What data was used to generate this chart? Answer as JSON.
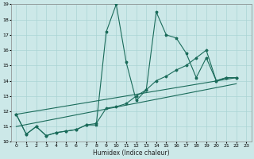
{
  "xlabel": "Humidex (Indice chaleur)",
  "bg_color": "#cce8e8",
  "line_color": "#1a6b5a",
  "grid_color": "#aad4d4",
  "xlim": [
    -0.5,
    23.5
  ],
  "ylim": [
    10,
    19
  ],
  "xticks": [
    0,
    1,
    2,
    3,
    4,
    5,
    6,
    7,
    8,
    9,
    10,
    11,
    12,
    13,
    14,
    15,
    16,
    17,
    18,
    19,
    20,
    21,
    22,
    23
  ],
  "yticks": [
    10,
    11,
    12,
    13,
    14,
    15,
    16,
    17,
    18,
    19
  ],
  "line1_x": [
    0,
    1,
    2,
    3,
    4,
    5,
    6,
    7,
    8,
    9,
    10,
    11,
    12,
    13,
    14,
    15,
    16,
    17,
    18,
    19,
    20,
    21,
    22
  ],
  "line1_y": [
    11.8,
    10.5,
    11.0,
    10.4,
    10.6,
    10.7,
    10.8,
    11.1,
    11.1,
    17.2,
    19.0,
    15.2,
    12.7,
    13.4,
    18.5,
    17.0,
    16.8,
    15.8,
    14.2,
    15.5,
    14.0,
    14.2,
    14.2
  ],
  "line2_x": [
    0,
    1,
    2,
    3,
    4,
    5,
    6,
    7,
    8,
    9,
    10,
    11,
    12,
    13,
    14,
    15,
    16,
    17,
    18,
    19,
    20,
    21,
    22
  ],
  "line2_y": [
    11.8,
    10.5,
    11.0,
    10.4,
    10.6,
    10.7,
    10.8,
    11.1,
    11.2,
    12.2,
    12.3,
    12.5,
    13.0,
    13.4,
    14.0,
    14.3,
    14.7,
    15.0,
    15.5,
    16.0,
    14.0,
    14.2,
    14.2
  ],
  "line3_x": [
    0,
    22
  ],
  "line3_y": [
    11.8,
    14.2
  ],
  "line4_x": [
    0,
    22
  ],
  "line4_y": [
    11.0,
    13.8
  ]
}
